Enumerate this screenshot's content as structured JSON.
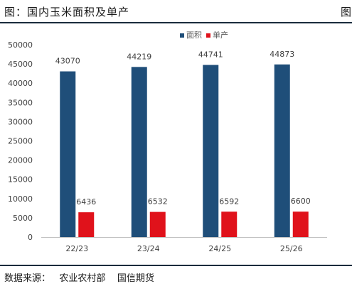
{
  "header": {
    "title": "图：国内玉米面积及单产",
    "mark": "图"
  },
  "source": "数据来源：   农业农村部    国信期货",
  "chart_data": {
    "type": "bar",
    "title": "",
    "xlabel": "",
    "ylabel": "",
    "categories": [
      "22/23",
      "23/24",
      "24/25",
      "25/26"
    ],
    "ylim": [
      0,
      50000
    ],
    "yticks": [
      0,
      5000,
      10000,
      15000,
      20000,
      25000,
      30000,
      35000,
      40000,
      45000,
      50000
    ],
    "grid": false,
    "legend_position": "top-right",
    "series": [
      {
        "name": "面积",
        "color": "#1f4e79",
        "values": [
          43070,
          44219,
          44741,
          44873
        ]
      },
      {
        "name": "单产",
        "color": "#e0121b",
        "values": [
          6436,
          6532,
          6592,
          6600
        ]
      }
    ]
  }
}
